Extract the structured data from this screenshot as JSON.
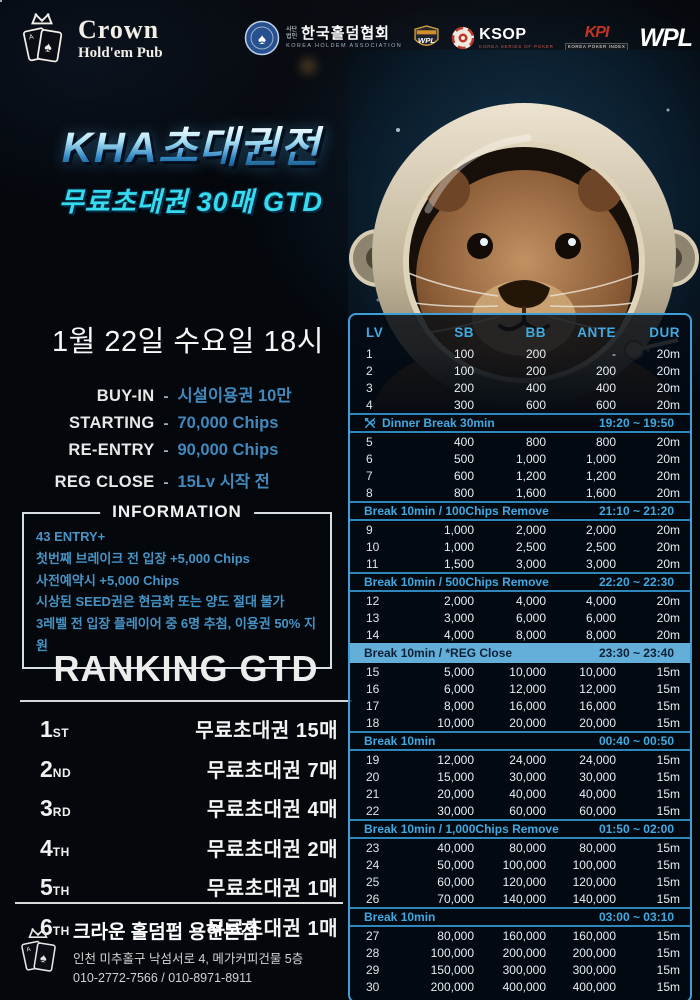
{
  "header": {
    "pub": {
      "title": "Crown",
      "subtitle": "Hold'em Pub"
    },
    "partners": {
      "kha": {
        "assoc_type": "사단 법인",
        "name_kr": "한국홀덤협회",
        "name_en": "KOREA HOLDEM ASSOCIATION"
      },
      "wpl_shield": {
        "label": "WPL"
      },
      "ksop": {
        "label": "KSOP",
        "sub": "KOREA SERIES OF POKER"
      },
      "kpi": {
        "label": "KPI",
        "sub": "KOREA POKER INDEX"
      },
      "wpl": {
        "label": "WPL"
      }
    }
  },
  "title": {
    "main": "KHA초대권전",
    "sub": "무료초대권 30매 GTD"
  },
  "event": {
    "datetime": "1월 22일 수요일 18시",
    "dash": "-",
    "specs": [
      {
        "label": "BUY-IN",
        "value": "시설이용권 10만"
      },
      {
        "label": "STARTING",
        "value": "70,000 Chips"
      },
      {
        "label": "RE-ENTRY",
        "value": "90,000 Chips"
      },
      {
        "label": "REG CLOSE",
        "value": "15Lv 시작 전"
      }
    ]
  },
  "information": {
    "title": "INFORMATION",
    "lines": [
      "43 ENTRY+",
      "첫번째 브레이크 전 입장 +5,000 Chips",
      "사전예약시 +5,000 Chips",
      "시상된 SEED권은 현금화 또는 양도 절대 불가",
      "3레벨 전 입장 플레이어 중 6명 추첨, 이용권 50% 지원"
    ]
  },
  "ranking": {
    "title": "RANKING GTD",
    "rows": [
      {
        "rank": "1",
        "suffix": "ST",
        "prize": "무료초대권 15매"
      },
      {
        "rank": "2",
        "suffix": "ND",
        "prize": "무료초대권 7매"
      },
      {
        "rank": "3",
        "suffix": "RD",
        "prize": "무료초대권 4매"
      },
      {
        "rank": "4",
        "suffix": "TH",
        "prize": "무료초대권 2매"
      },
      {
        "rank": "5",
        "suffix": "TH",
        "prize": "무료초대권 1매"
      },
      {
        "rank": "6",
        "suffix": "TH",
        "prize": "무료초대권 1매"
      }
    ]
  },
  "footer": {
    "name": "크라운 홀덤펍 용현본점",
    "address": "인천 미추홀구 낙섬서로 4, 메가커피건물 5층",
    "phones": "010-2772-7566 / 010-8971-8911"
  },
  "schedule": {
    "columns": [
      "LV",
      "SB",
      "BB",
      "ANTE",
      "DUR"
    ],
    "rows": [
      {
        "type": "level",
        "lv": "1",
        "sb": "100",
        "bb": "200",
        "ante": "-",
        "dur": "20m"
      },
      {
        "type": "level",
        "lv": "2",
        "sb": "100",
        "bb": "200",
        "ante": "200",
        "dur": "20m"
      },
      {
        "type": "level",
        "lv": "3",
        "sb": "200",
        "bb": "400",
        "ante": "400",
        "dur": "20m"
      },
      {
        "type": "level",
        "lv": "4",
        "sb": "300",
        "bb": "600",
        "ante": "600",
        "dur": "20m"
      },
      {
        "type": "break",
        "label": "Dinner Break 30min",
        "time": "19:20 ~ 19:50",
        "icon": "utensils"
      },
      {
        "type": "level",
        "lv": "5",
        "sb": "400",
        "bb": "800",
        "ante": "800",
        "dur": "20m"
      },
      {
        "type": "level",
        "lv": "6",
        "sb": "500",
        "bb": "1,000",
        "ante": "1,000",
        "dur": "20m"
      },
      {
        "type": "level",
        "lv": "7",
        "sb": "600",
        "bb": "1,200",
        "ante": "1,200",
        "dur": "20m"
      },
      {
        "type": "level",
        "lv": "8",
        "sb": "800",
        "bb": "1,600",
        "ante": "1,600",
        "dur": "20m"
      },
      {
        "type": "break",
        "label": "Break 10min / 100Chips Remove",
        "time": "21:10 ~ 21:20"
      },
      {
        "type": "level",
        "lv": "9",
        "sb": "1,000",
        "bb": "2,000",
        "ante": "2,000",
        "dur": "20m"
      },
      {
        "type": "level",
        "lv": "10",
        "sb": "1,000",
        "bb": "2,500",
        "ante": "2,500",
        "dur": "20m"
      },
      {
        "type": "level",
        "lv": "11",
        "sb": "1,500",
        "bb": "3,000",
        "ante": "3,000",
        "dur": "20m"
      },
      {
        "type": "break",
        "label": "Break 10min / 500Chips Remove",
        "time": "22:20 ~ 22:30"
      },
      {
        "type": "level",
        "lv": "12",
        "sb": "2,000",
        "bb": "4,000",
        "ante": "4,000",
        "dur": "20m"
      },
      {
        "type": "level",
        "lv": "13",
        "sb": "3,000",
        "bb": "6,000",
        "ante": "6,000",
        "dur": "20m"
      },
      {
        "type": "level",
        "lv": "14",
        "sb": "4,000",
        "bb": "8,000",
        "ante": "8,000",
        "dur": "20m"
      },
      {
        "type": "break",
        "label": "Break 10min / *REG Close",
        "time": "23:30 ~ 23:40",
        "highlight": true
      },
      {
        "type": "level",
        "lv": "15",
        "sb": "5,000",
        "bb": "10,000",
        "ante": "10,000",
        "dur": "15m"
      },
      {
        "type": "level",
        "lv": "16",
        "sb": "6,000",
        "bb": "12,000",
        "ante": "12,000",
        "dur": "15m"
      },
      {
        "type": "level",
        "lv": "17",
        "sb": "8,000",
        "bb": "16,000",
        "ante": "16,000",
        "dur": "15m"
      },
      {
        "type": "level",
        "lv": "18",
        "sb": "10,000",
        "bb": "20,000",
        "ante": "20,000",
        "dur": "15m"
      },
      {
        "type": "break",
        "label": "Break 10min",
        "time": "00:40 ~ 00:50"
      },
      {
        "type": "level",
        "lv": "19",
        "sb": "12,000",
        "bb": "24,000",
        "ante": "24,000",
        "dur": "15m"
      },
      {
        "type": "level",
        "lv": "20",
        "sb": "15,000",
        "bb": "30,000",
        "ante": "30,000",
        "dur": "15m"
      },
      {
        "type": "level",
        "lv": "21",
        "sb": "20,000",
        "bb": "40,000",
        "ante": "40,000",
        "dur": "15m"
      },
      {
        "type": "level",
        "lv": "22",
        "sb": "30,000",
        "bb": "60,000",
        "ante": "60,000",
        "dur": "15m"
      },
      {
        "type": "break",
        "label": "Break 10min / 1,000Chips Remove",
        "time": "01:50 ~ 02:00"
      },
      {
        "type": "level",
        "lv": "23",
        "sb": "40,000",
        "bb": "80,000",
        "ante": "80,000",
        "dur": "15m"
      },
      {
        "type": "level",
        "lv": "24",
        "sb": "50,000",
        "bb": "100,000",
        "ante": "100,000",
        "dur": "15m"
      },
      {
        "type": "level",
        "lv": "25",
        "sb": "60,000",
        "bb": "120,000",
        "ante": "120,000",
        "dur": "15m"
      },
      {
        "type": "level",
        "lv": "26",
        "sb": "70,000",
        "bb": "140,000",
        "ante": "140,000",
        "dur": "15m"
      },
      {
        "type": "break",
        "label": "Break 10min",
        "time": "03:00 ~ 03:10"
      },
      {
        "type": "level",
        "lv": "27",
        "sb": "80,000",
        "bb": "160,000",
        "ante": "160,000",
        "dur": "15m"
      },
      {
        "type": "level",
        "lv": "28",
        "sb": "100,000",
        "bb": "200,000",
        "ante": "200,000",
        "dur": "15m"
      },
      {
        "type": "level",
        "lv": "29",
        "sb": "150,000",
        "bb": "300,000",
        "ante": "300,000",
        "dur": "15m"
      },
      {
        "type": "level",
        "lv": "30",
        "sb": "200,000",
        "bb": "400,000",
        "ante": "400,000",
        "dur": "15m"
      }
    ]
  },
  "icons": {
    "spade": "♠"
  },
  "colors": {
    "accent_cyan": "#3fa9e0",
    "value_blue": "#4189bd",
    "table_border": "#3f9ed6",
    "break_highlight_bg": "#64aeda",
    "title_sub_cyan": "#35dcef",
    "background": "#04070c"
  }
}
